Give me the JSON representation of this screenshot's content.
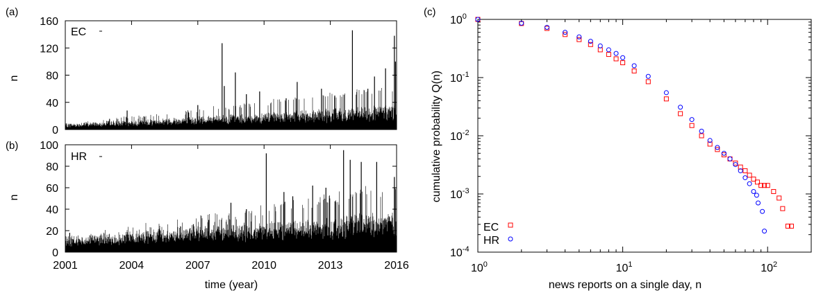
{
  "chart_data": [
    {
      "panel": "(a)",
      "type": "bar",
      "legend": "EC",
      "ylabel": "n",
      "xlabel": "",
      "ylim": [
        0,
        160
      ],
      "yticks": [
        "0",
        "40",
        "80",
        "120",
        "160"
      ],
      "xlim": [
        2001,
        2016
      ],
      "baseline_noise": {
        "base": 3,
        "trend_per_year": 1.8,
        "spread": 6
      },
      "peaks": [
        {
          "x": 2003.8,
          "y": 28
        },
        {
          "x": 2007.0,
          "y": 36
        },
        {
          "x": 2008.1,
          "y": 127
        },
        {
          "x": 2008.2,
          "y": 64
        },
        {
          "x": 2008.7,
          "y": 84
        },
        {
          "x": 2009.2,
          "y": 52
        },
        {
          "x": 2009.8,
          "y": 56
        },
        {
          "x": 2011.0,
          "y": 46
        },
        {
          "x": 2011.5,
          "y": 70
        },
        {
          "x": 2012.6,
          "y": 60
        },
        {
          "x": 2013.2,
          "y": 50
        },
        {
          "x": 2014.0,
          "y": 146
        },
        {
          "x": 2014.7,
          "y": 60
        },
        {
          "x": 2015.0,
          "y": 78
        },
        {
          "x": 2015.5,
          "y": 90
        },
        {
          "x": 2015.9,
          "y": 138
        },
        {
          "x": 2015.95,
          "y": 100
        }
      ]
    },
    {
      "panel": "(b)",
      "type": "bar",
      "legend": "HR",
      "ylabel": "n",
      "xlabel": "time (year)",
      "ylim": [
        0,
        100
      ],
      "yticks": [
        "0",
        "20",
        "40",
        "60",
        "80",
        "100"
      ],
      "xlim": [
        2001,
        2016
      ],
      "xticks": [
        "2001",
        "2004",
        "2007",
        "2010",
        "2013",
        "2016"
      ],
      "baseline_noise": {
        "base": 5,
        "trend_per_year": 1.6,
        "spread": 10
      },
      "peaks": [
        {
          "x": 2001.2,
          "y": 18
        },
        {
          "x": 2006.8,
          "y": 26
        },
        {
          "x": 2007.5,
          "y": 30
        },
        {
          "x": 2008.5,
          "y": 46
        },
        {
          "x": 2009.2,
          "y": 40
        },
        {
          "x": 2010.1,
          "y": 92
        },
        {
          "x": 2010.9,
          "y": 56
        },
        {
          "x": 2011.3,
          "y": 52
        },
        {
          "x": 2012.2,
          "y": 62
        },
        {
          "x": 2012.8,
          "y": 60
        },
        {
          "x": 2013.6,
          "y": 95
        },
        {
          "x": 2013.9,
          "y": 86
        },
        {
          "x": 2014.4,
          "y": 84
        },
        {
          "x": 2015.1,
          "y": 84
        },
        {
          "x": 2015.9,
          "y": 70
        }
      ]
    },
    {
      "panel": "(c)",
      "type": "scatter",
      "xlabel": "news reports on a single day, n",
      "ylabel": "cumulative probability Q(n)",
      "xscale": "log",
      "yscale": "log",
      "xlim": [
        1,
        200
      ],
      "ylim": [
        0.0001,
        1
      ],
      "xticks": [
        {
          "base": "10",
          "exp": "0"
        },
        {
          "base": "10",
          "exp": "1"
        },
        {
          "base": "10",
          "exp": "2"
        }
      ],
      "yticks": [
        {
          "base": "10",
          "exp": "-4"
        },
        {
          "base": "10",
          "exp": "-3"
        },
        {
          "base": "10",
          "exp": "-2"
        },
        {
          "base": "10",
          "exp": "-1"
        },
        {
          "base": "10",
          "exp": "0"
        }
      ],
      "legend_position": "bottom-left",
      "series": [
        {
          "name": "EC",
          "marker": "square",
          "color": "#ff0000",
          "x": [
            1,
            2,
            3,
            4,
            5,
            6,
            7,
            8,
            9,
            10,
            12,
            15,
            20,
            25,
            30,
            35,
            40,
            45,
            50,
            55,
            60,
            65,
            70,
            75,
            80,
            85,
            90,
            95,
            100,
            110,
            120,
            127,
            138,
            146
          ],
          "y": [
            1.0,
            0.85,
            0.7,
            0.55,
            0.45,
            0.37,
            0.3,
            0.25,
            0.21,
            0.18,
            0.13,
            0.085,
            0.043,
            0.024,
            0.015,
            0.01,
            0.0072,
            0.0058,
            0.0047,
            0.004,
            0.0034,
            0.0029,
            0.0025,
            0.0021,
            0.0018,
            0.0016,
            0.0014,
            0.0014,
            0.0014,
            0.0011,
            0.00085,
            0.00056,
            0.00028,
            0.00028
          ]
        },
        {
          "name": "HR",
          "marker": "circle",
          "color": "#0000ff",
          "x": [
            1,
            2,
            3,
            4,
            5,
            6,
            7,
            8,
            9,
            10,
            12,
            15,
            20,
            25,
            30,
            35,
            40,
            45,
            50,
            55,
            60,
            65,
            70,
            75,
            80,
            84,
            86,
            92,
            95
          ],
          "y": [
            1.0,
            0.86,
            0.73,
            0.6,
            0.5,
            0.42,
            0.35,
            0.3,
            0.26,
            0.22,
            0.16,
            0.105,
            0.055,
            0.031,
            0.019,
            0.012,
            0.0083,
            0.0063,
            0.005,
            0.004,
            0.0032,
            0.0025,
            0.0019,
            0.0015,
            0.0011,
            0.00095,
            0.0007,
            0.0005,
            0.00023
          ]
        }
      ]
    }
  ]
}
